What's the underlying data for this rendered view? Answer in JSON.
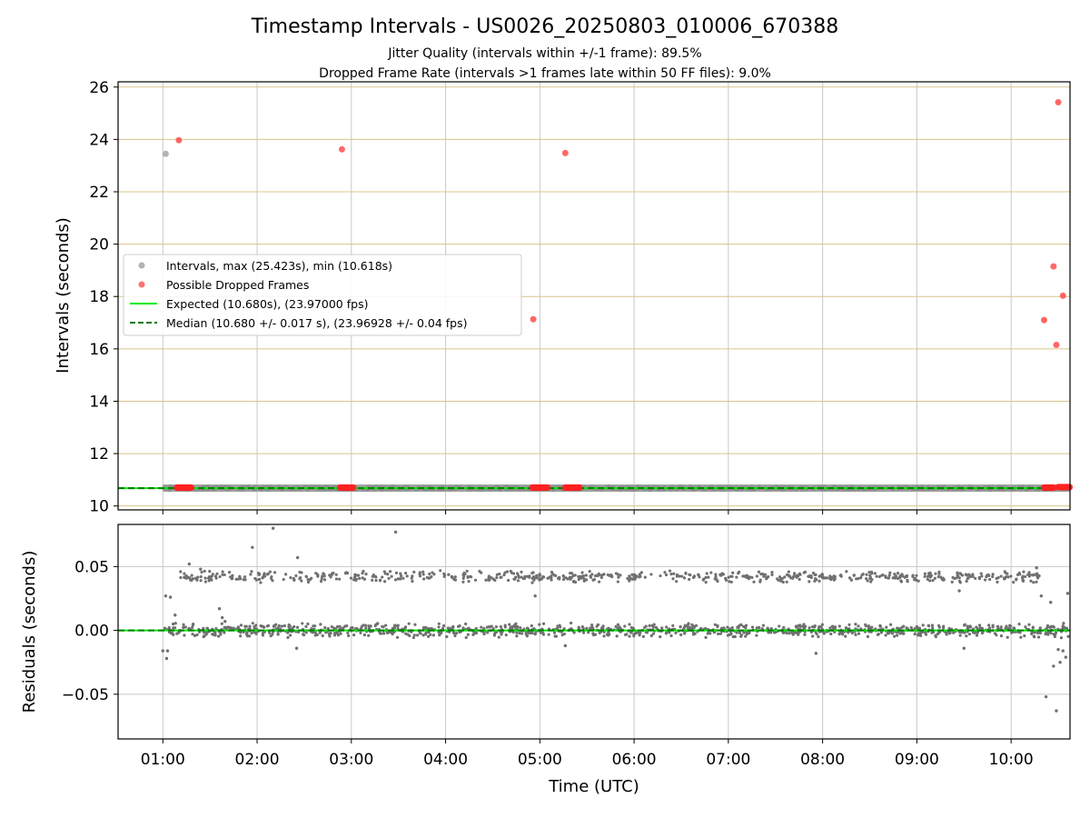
{
  "chart_data": [
    {
      "id": "intervals",
      "type": "scatter",
      "title": "Timestamp Intervals - US0026_20250803_010006_670388",
      "subtitle_lines": [
        "Jitter Quality (intervals within +/-1 frame): 89.5%",
        "Dropped Frame Rate (intervals >1 frames late within 50 FF files): 9.0%"
      ],
      "ylabel": "Intervals (seconds)",
      "ylim": [
        9.85,
        26.2
      ],
      "yticks": [
        10,
        12,
        14,
        16,
        18,
        20,
        22,
        24,
        26
      ],
      "ytick_labels": [
        "10",
        "12",
        "14",
        "16",
        "18",
        "20",
        "22",
        "24",
        "26"
      ],
      "xlim": [
        0.525,
        10.625
      ],
      "xticks": [
        1,
        2,
        3,
        4,
        5,
        6,
        7,
        8,
        9,
        10
      ],
      "xtick_labels": [
        "01:00",
        "02:00",
        "03:00",
        "04:00",
        "05:00",
        "06:00",
        "07:00",
        "08:00",
        "09:00",
        "10:00"
      ],
      "grid": true,
      "legend_position": "center-left",
      "colors": {
        "intervals": "#a0a0a0",
        "dropped": "#ff4d4d",
        "expected": "#00ee00",
        "median": "#007a00",
        "hgrid": "#d9c48a",
        "vgrid": "#c8c8c8"
      },
      "series": [
        {
          "name": "Intervals, max (25.423s), min (10.618s)",
          "kind": "scatter",
          "summary": {
            "x_range": [
              1.0,
              10.62
            ],
            "y_typical": 10.68
          },
          "points": [
            [
              1.03,
              23.45
            ]
          ]
        },
        {
          "name": "Possible Dropped Frames",
          "kind": "scatter",
          "points": [
            [
              1.17,
              23.97
            ],
            [
              2.9,
              23.62
            ],
            [
              4.93,
              17.13
            ],
            [
              5.27,
              23.48
            ],
            [
              10.35,
              17.1
            ],
            [
              10.45,
              19.15
            ],
            [
              10.48,
              16.15
            ],
            [
              10.5,
              25.42
            ],
            [
              10.55,
              18.03
            ]
          ],
          "clusters": [
            [
              1.15,
              1.3,
              10.7
            ],
            [
              2.88,
              3.02,
              10.7
            ],
            [
              4.92,
              5.08,
              10.7
            ],
            [
              5.27,
              5.42,
              10.7
            ],
            [
              10.35,
              10.45,
              10.7
            ],
            [
              10.5,
              10.62,
              10.72
            ]
          ]
        },
        {
          "name": "Expected (10.680s), (23.97000 fps)",
          "kind": "hline",
          "y": 10.68
        },
        {
          "name": "Median (10.680 +/- 0.017 s), (23.96928 +/- 0.04 fps)",
          "kind": "hline_dashed",
          "y": 10.68
        }
      ]
    },
    {
      "id": "residuals",
      "type": "scatter",
      "ylabel": "Residuals (seconds)",
      "xlabel": "Time (UTC)",
      "ylim": [
        -0.085,
        0.083
      ],
      "yticks": [
        -0.05,
        0.0,
        0.05
      ],
      "ytick_labels": [
        "−0.05",
        "0.00",
        "0.05"
      ],
      "xlim": [
        0.525,
        10.625
      ],
      "xticks": [
        1,
        2,
        3,
        4,
        5,
        6,
        7,
        8,
        9,
        10
      ],
      "xtick_labels": [
        "01:00",
        "02:00",
        "03:00",
        "04:00",
        "05:00",
        "06:00",
        "07:00",
        "08:00",
        "09:00",
        "10:00"
      ],
      "grid": true,
      "series": [
        {
          "name": "residuals",
          "kind": "scatter",
          "bands": [
            {
              "y_center": 0.0,
              "spread": 0.006,
              "x_range": [
                1.0,
                10.62
              ]
            },
            {
              "y_center": 0.042,
              "spread": 0.005,
              "x_range": [
                1.15,
                10.3
              ]
            }
          ],
          "outliers": [
            [
              1.0,
              -0.016
            ],
            [
              1.05,
              -0.016
            ],
            [
              1.04,
              -0.022
            ],
            [
              1.03,
              0.027
            ],
            [
              1.08,
              0.026
            ],
            [
              1.11,
              0.005
            ],
            [
              1.13,
              0.012
            ],
            [
              1.28,
              0.052
            ],
            [
              1.4,
              0.048
            ],
            [
              1.6,
              0.017
            ],
            [
              1.63,
              0.01
            ],
            [
              1.66,
              0.007
            ],
            [
              1.95,
              0.065
            ],
            [
              2.17,
              0.08
            ],
            [
              2.43,
              0.057
            ],
            [
              2.42,
              -0.014
            ],
            [
              3.47,
              0.077
            ],
            [
              4.95,
              0.027
            ],
            [
              5.27,
              -0.012
            ],
            [
              7.93,
              -0.018
            ],
            [
              9.45,
              0.031
            ],
            [
              9.5,
              -0.014
            ],
            [
              10.27,
              0.049
            ],
            [
              10.32,
              0.027
            ],
            [
              10.37,
              -0.052
            ],
            [
              10.42,
              0.022
            ],
            [
              10.45,
              -0.028
            ],
            [
              10.48,
              -0.063
            ],
            [
              10.5,
              -0.015
            ],
            [
              10.52,
              -0.025
            ],
            [
              10.55,
              -0.016
            ],
            [
              10.58,
              -0.021
            ],
            [
              10.6,
              0.029
            ]
          ]
        },
        {
          "name": "zero line",
          "kind": "hline_dashed",
          "y": 0.0
        }
      ]
    }
  ]
}
